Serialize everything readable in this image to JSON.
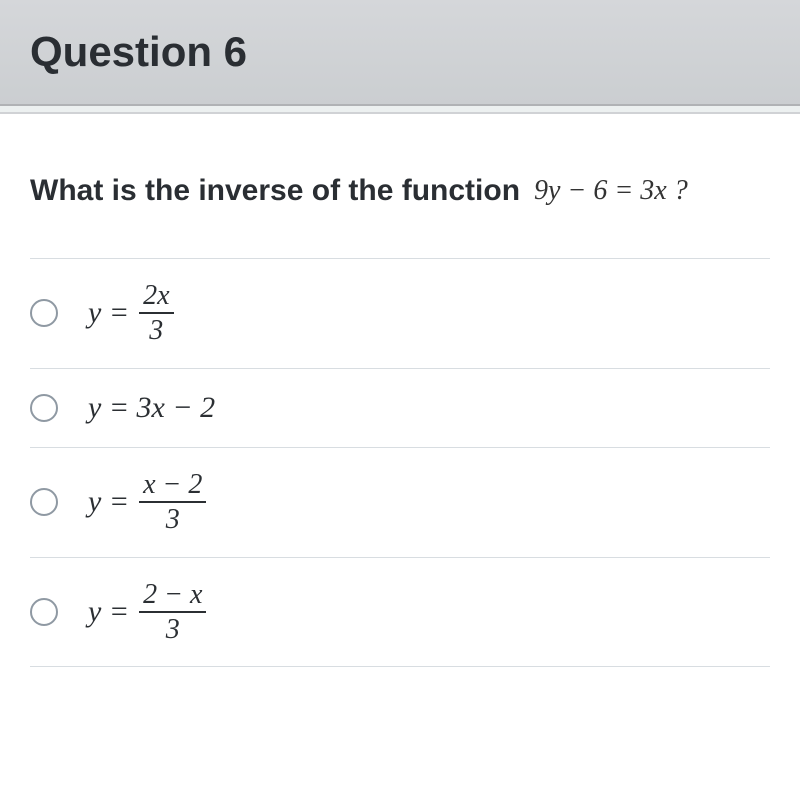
{
  "header": {
    "title": "Question 6"
  },
  "prompt": {
    "text": "What is the inverse of the function",
    "equation": "9y − 6 = 3x ?"
  },
  "options": [
    {
      "lhs": "y =",
      "is_fraction": true,
      "numerator": "2x",
      "denominator": "3"
    },
    {
      "lhs": "y = 3x − 2",
      "is_fraction": false
    },
    {
      "lhs": "y =",
      "is_fraction": true,
      "numerator": "x − 2",
      "denominator": "3"
    },
    {
      "lhs": "y =",
      "is_fraction": true,
      "numerator": "2 − x",
      "denominator": "3"
    }
  ],
  "styles": {
    "header_bg_top": "#d5d7da",
    "header_bg_bottom": "#cbced1",
    "content_bg": "#ffffff",
    "body_bg": "#ecf0f0",
    "divider_color": "#d8dde1",
    "radio_border": "#8f99a3",
    "title_color": "#2a2e33",
    "math_color": "#2b2f33",
    "title_fontsize": 42,
    "prompt_fontsize": 30,
    "math_fontsize": 30
  }
}
